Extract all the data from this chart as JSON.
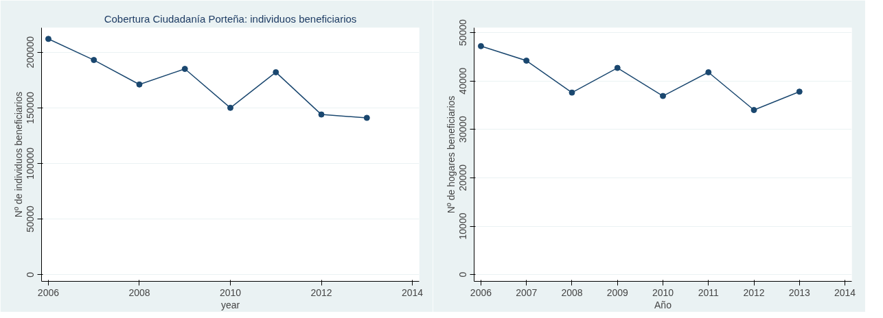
{
  "chart_data": [
    {
      "type": "line",
      "title": "Cobertura Ciudadanía Porteña: individuos beneficiarios",
      "xlabel": "year",
      "ylabel": "Nº de individuos beneficiarios",
      "x": [
        2006,
        2007,
        2008,
        2009,
        2010,
        2011,
        2012,
        2013
      ],
      "series": [
        {
          "color": "#1a476f",
          "values": [
            212000,
            193000,
            171000,
            185000,
            150000,
            182000,
            144000,
            141000
          ]
        }
      ],
      "xlim": [
        2005.85,
        2014.15
      ],
      "xticks": [
        2006,
        2008,
        2010,
        2012,
        2014
      ],
      "ylim": [
        -6000,
        222000
      ],
      "yticks": [
        0,
        50000,
        100000,
        150000,
        200000
      ],
      "grid": "y",
      "marker": "circle"
    },
    {
      "type": "line",
      "xlabel": "Año",
      "ylabel": "Nº de hogares beneficiarios",
      "x": [
        2006,
        2007,
        2008,
        2009,
        2010,
        2011,
        2012,
        2013
      ],
      "series": [
        {
          "color": "#1a476f",
          "values": [
            47200,
            44200,
            37600,
            42700,
            36900,
            41800,
            34000,
            37800
          ]
        }
      ],
      "xlim": [
        2005.85,
        2014.15
      ],
      "xticks": [
        2006,
        2007,
        2008,
        2009,
        2010,
        2011,
        2012,
        2013,
        2014
      ],
      "ylim": [
        -1400,
        51000
      ],
      "yticks": [
        0,
        10000,
        20000,
        30000,
        40000,
        50000
      ],
      "grid": "y",
      "marker": "circle"
    }
  ]
}
